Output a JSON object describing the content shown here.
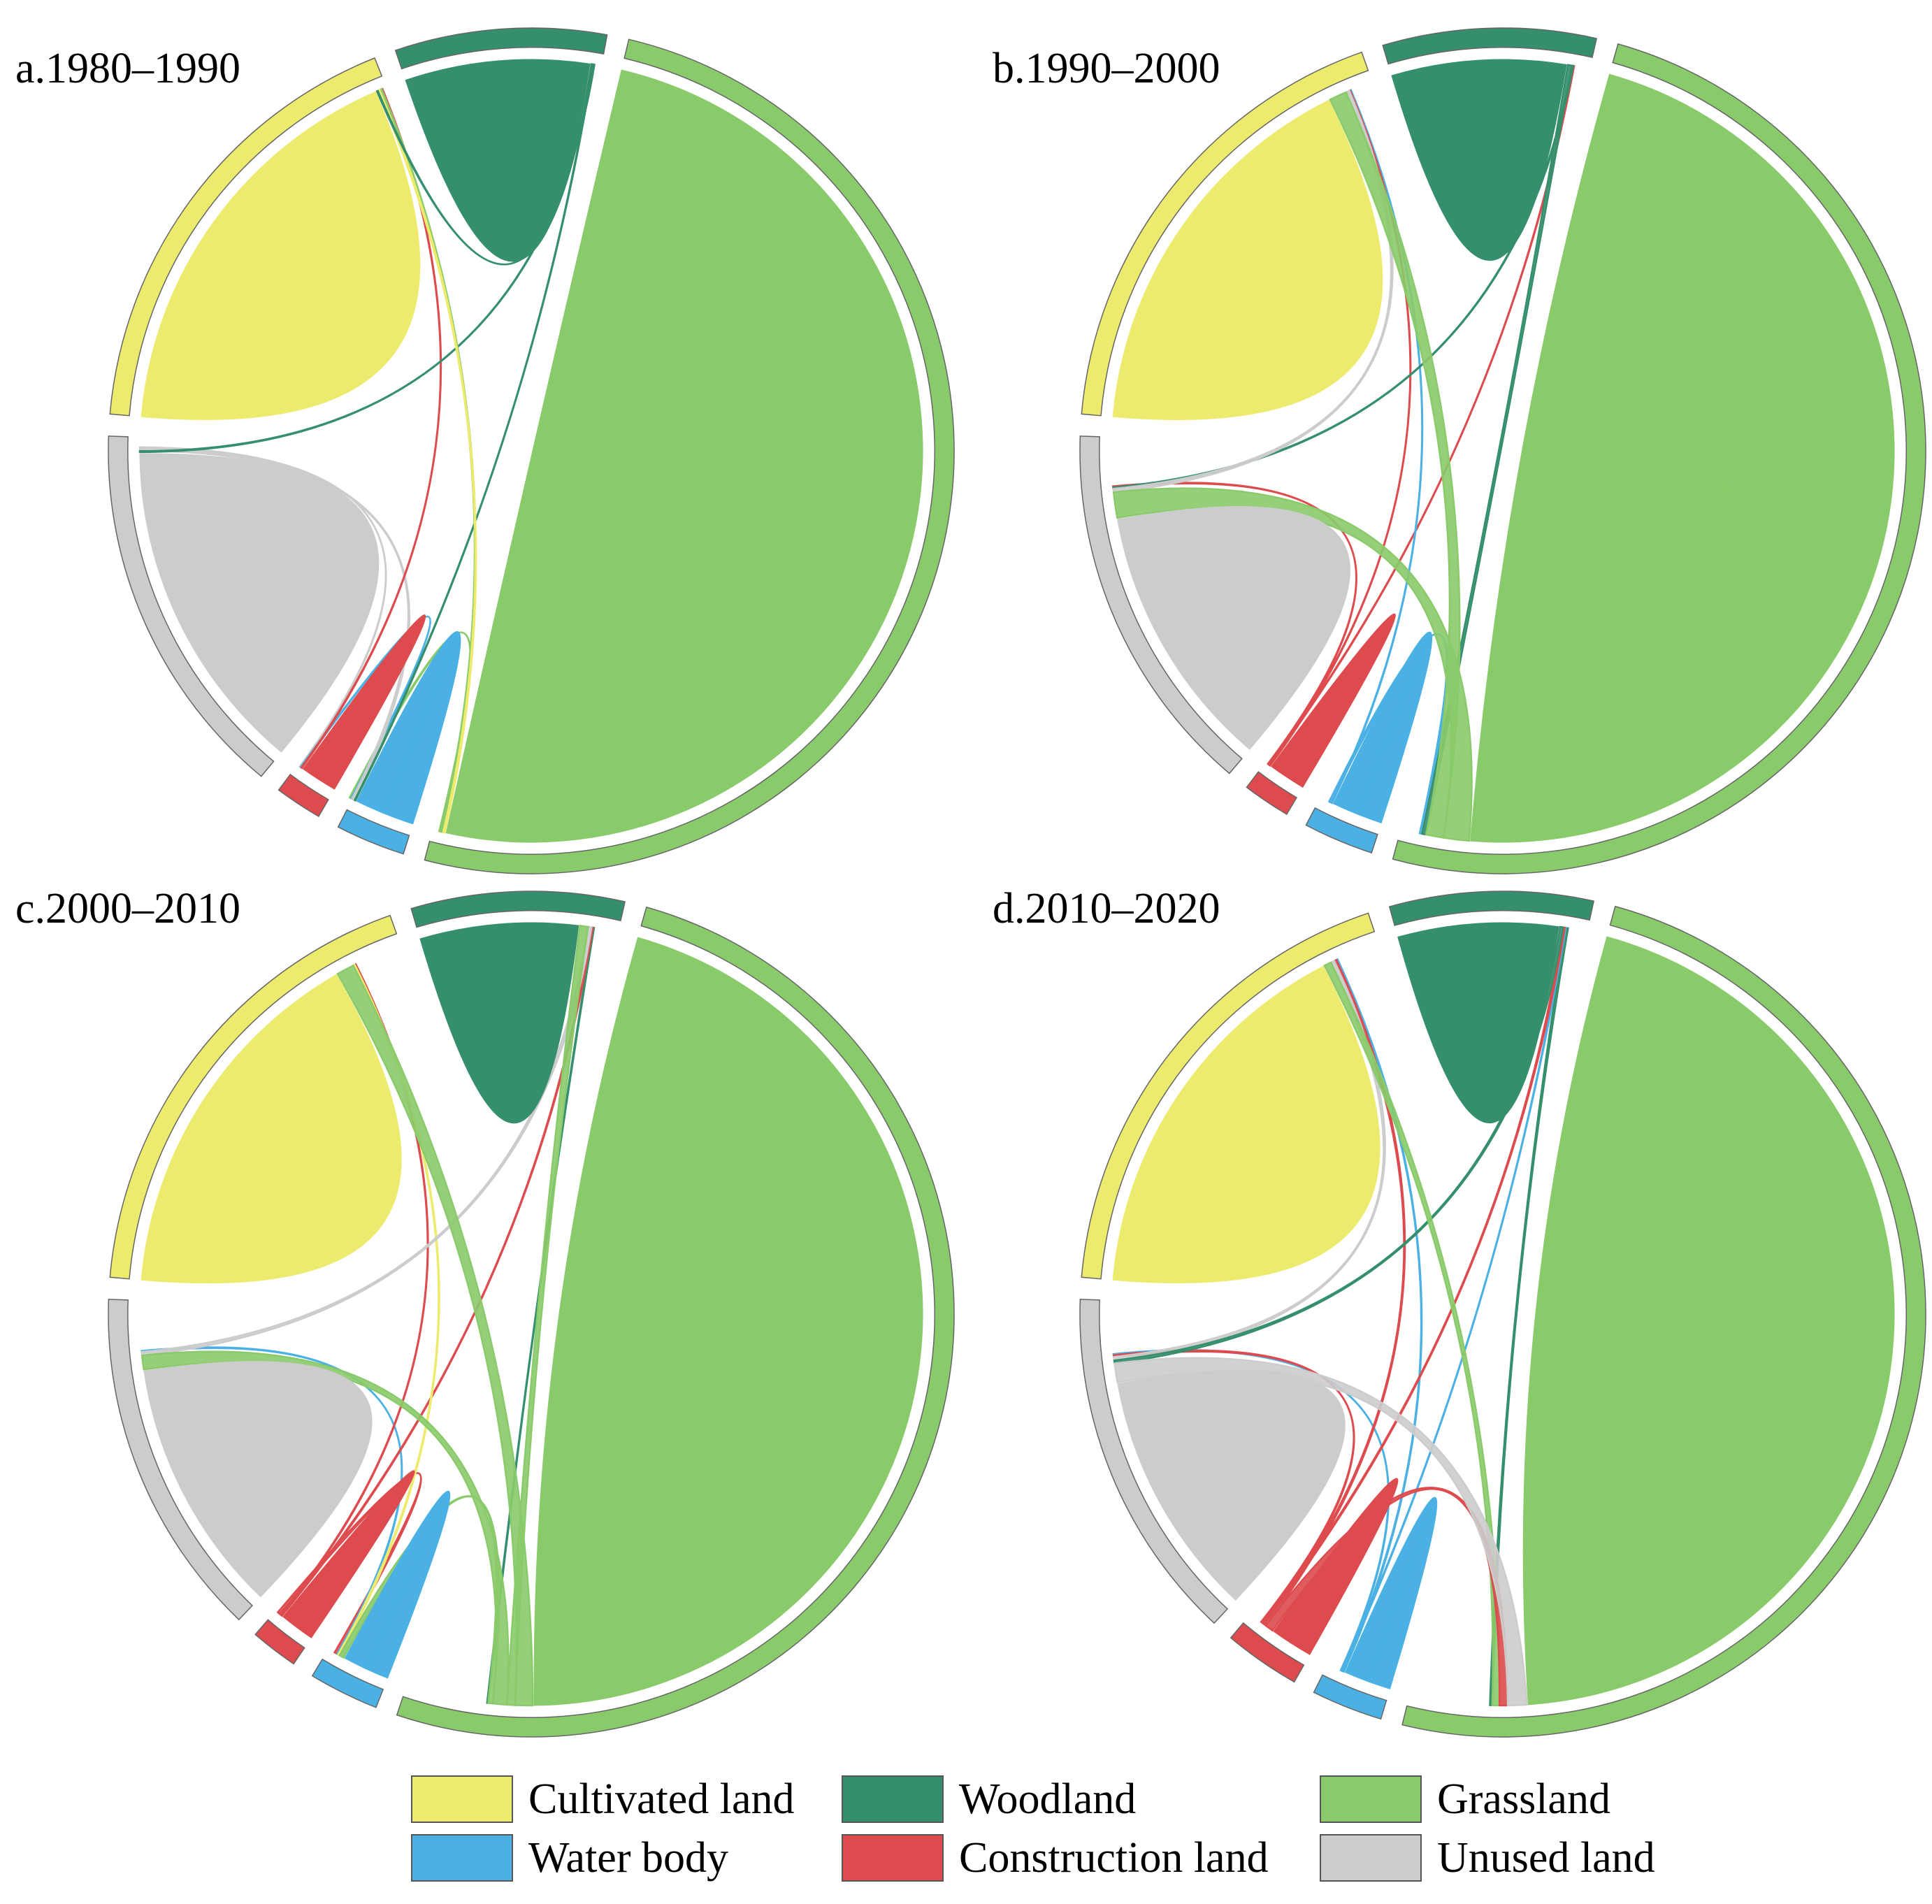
{
  "categories": [
    {
      "key": "cultivated",
      "label": "Cultivated land",
      "color": "#EDEB6E"
    },
    {
      "key": "woodland",
      "label": "Woodland",
      "color": "#358F6C"
    },
    {
      "key": "grassland",
      "label": "Grassland",
      "color": "#89CA6A"
    },
    {
      "key": "water",
      "label": "Water body",
      "color": "#4BB1E4"
    },
    {
      "key": "construction",
      "label": "Construction land",
      "color": "#DD4B4E"
    },
    {
      "key": "unused",
      "label": "Unused land",
      "color": "#CCCCCC"
    }
  ],
  "chart_data": [
    {
      "type": "chord",
      "title": "a.1980–1990",
      "sectors": [
        {
          "key": "cultivated",
          "value": 18.5
        },
        {
          "key": "woodland",
          "value": 8.5
        },
        {
          "key": "grassland",
          "value": 53
        },
        {
          "key": "water",
          "value": 2.8
        },
        {
          "key": "construction",
          "value": 1.9
        },
        {
          "key": "unused",
          "value": 15.3
        }
      ],
      "flows": [
        {
          "from": "cultivated",
          "to": "cultivated",
          "value": 18.0
        },
        {
          "from": "woodland",
          "to": "woodland",
          "value": 8.0
        },
        {
          "from": "grassland",
          "to": "grassland",
          "value": 52.4
        },
        {
          "from": "water",
          "to": "water",
          "value": 2.6
        },
        {
          "from": "construction",
          "to": "construction",
          "value": 1.6
        },
        {
          "from": "unused",
          "to": "unused",
          "value": 14.6
        },
        {
          "from": "woodland",
          "to": "cultivated",
          "value": 0.1
        },
        {
          "from": "cultivated",
          "to": "grassland",
          "value": 0.15
        },
        {
          "from": "grassland",
          "to": "cultivated",
          "value": 0.2
        },
        {
          "from": "woodland",
          "to": "water",
          "value": 0.08
        },
        {
          "from": "woodland",
          "to": "unused",
          "value": 0.1
        },
        {
          "from": "construction",
          "to": "cultivated",
          "value": 0.08
        },
        {
          "from": "unused",
          "to": "water",
          "value": 0.25
        },
        {
          "from": "water",
          "to": "construction",
          "value": 0.08
        },
        {
          "from": "unused",
          "to": "construction",
          "value": 0.08
        },
        {
          "from": "grassland",
          "to": "water",
          "value": 0.15
        }
      ]
    },
    {
      "type": "chord",
      "title": "b.1990–2000",
      "sectors": [
        {
          "key": "cultivated",
          "value": 19
        },
        {
          "key": "woodland",
          "value": 8.5
        },
        {
          "key": "grassland",
          "value": 52
        },
        {
          "key": "water",
          "value": 2.8
        },
        {
          "key": "construction",
          "value": 1.9
        },
        {
          "key": "unused",
          "value": 15
        }
      ],
      "flows": [
        {
          "from": "cultivated",
          "to": "cultivated",
          "value": 17.0
        },
        {
          "from": "woodland",
          "to": "woodland",
          "value": 7.5
        },
        {
          "from": "grassland",
          "to": "grassland",
          "value": 49.0
        },
        {
          "from": "water",
          "to": "water",
          "value": 2.2
        },
        {
          "from": "construction",
          "to": "construction",
          "value": 1.6
        },
        {
          "from": "unused",
          "to": "unused",
          "value": 11.5
        },
        {
          "from": "grassland",
          "to": "unused",
          "value": 2.2
        },
        {
          "from": "grassland",
          "to": "cultivated",
          "value": 1.5
        },
        {
          "from": "unused",
          "to": "cultivated",
          "value": 0.3
        },
        {
          "from": "woodland",
          "to": "grassland",
          "value": 0.35
        },
        {
          "from": "woodland",
          "to": "unused",
          "value": 0.12
        },
        {
          "from": "construction",
          "to": "cultivated",
          "value": 0.08
        },
        {
          "from": "water",
          "to": "cultivated",
          "value": 0.08
        },
        {
          "from": "construction",
          "to": "woodland",
          "value": 0.08
        },
        {
          "from": "water",
          "to": "grassland",
          "value": 0.2
        },
        {
          "from": "construction",
          "to": "unused",
          "value": 0.1
        }
      ]
    },
    {
      "type": "chord",
      "title": "c.2000–2010",
      "sectors": [
        {
          "key": "cultivated",
          "value": 19
        },
        {
          "key": "woodland",
          "value": 8.5
        },
        {
          "key": "grassland",
          "value": 53
        },
        {
          "key": "water",
          "value": 2.8
        },
        {
          "key": "construction",
          "value": 1.9
        },
        {
          "key": "unused",
          "value": 14
        }
      ],
      "flows": [
        {
          "from": "cultivated",
          "to": "cultivated",
          "value": 16.0
        },
        {
          "from": "woodland",
          "to": "woodland",
          "value": 6.8
        },
        {
          "from": "grassland",
          "to": "grassland",
          "value": 47.5
        },
        {
          "from": "water",
          "to": "water",
          "value": 2.0
        },
        {
          "from": "construction",
          "to": "construction",
          "value": 1.5
        },
        {
          "from": "unused",
          "to": "unused",
          "value": 11.0
        },
        {
          "from": "grassland",
          "to": "cultivated",
          "value": 1.5
        },
        {
          "from": "grassland",
          "to": "woodland",
          "value": 0.7
        },
        {
          "from": "grassland",
          "to": "unused",
          "value": 1.2
        },
        {
          "from": "unused",
          "to": "woodland",
          "value": 0.3
        },
        {
          "from": "grassland",
          "to": "water",
          "value": 0.4
        },
        {
          "from": "cultivated",
          "to": "water",
          "value": 0.15
        },
        {
          "from": "construction",
          "to": "woodland",
          "value": 0.12
        },
        {
          "from": "construction",
          "to": "cultivated",
          "value": 0.1
        },
        {
          "from": "water",
          "to": "unused",
          "value": 0.1
        },
        {
          "from": "construction",
          "to": "water",
          "value": 0.25
        },
        {
          "from": "woodland",
          "to": "grassland",
          "value": 0.1
        }
      ]
    },
    {
      "type": "chord",
      "title": "d.2010–2020",
      "sectors": [
        {
          "key": "cultivated",
          "value": 19
        },
        {
          "key": "woodland",
          "value": 8
        },
        {
          "key": "grassland",
          "value": 51
        },
        {
          "key": "water",
          "value": 2.8
        },
        {
          "key": "construction",
          "value": 3.0
        },
        {
          "key": "unused",
          "value": 14
        }
      ],
      "flows": [
        {
          "from": "cultivated",
          "to": "cultivated",
          "value": 16.5
        },
        {
          "from": "woodland",
          "to": "woodland",
          "value": 6.8
        },
        {
          "from": "grassland",
          "to": "grassland",
          "value": 46.0
        },
        {
          "from": "water",
          "to": "water",
          "value": 2.0
        },
        {
          "from": "construction",
          "to": "construction",
          "value": 1.8
        },
        {
          "from": "unused",
          "to": "unused",
          "value": 10.5
        },
        {
          "from": "unused",
          "to": "grassland",
          "value": 1.6
        },
        {
          "from": "construction",
          "to": "grassland",
          "value": 0.7
        },
        {
          "from": "grassland",
          "to": "cultivated",
          "value": 0.6
        },
        {
          "from": "woodland",
          "to": "unused",
          "value": 0.25
        },
        {
          "from": "unused",
          "to": "cultivated",
          "value": 0.3
        },
        {
          "from": "construction",
          "to": "cultivated",
          "value": 0.2
        },
        {
          "from": "construction",
          "to": "woodland",
          "value": 0.15
        },
        {
          "from": "water",
          "to": "cultivated",
          "value": 0.12
        },
        {
          "from": "water",
          "to": "woodland",
          "value": 0.08
        },
        {
          "from": "construction",
          "to": "unused",
          "value": 0.15
        },
        {
          "from": "water",
          "to": "unused",
          "value": 0.1
        },
        {
          "from": "woodland",
          "to": "grassland",
          "value": 0.2
        }
      ]
    }
  ]
}
